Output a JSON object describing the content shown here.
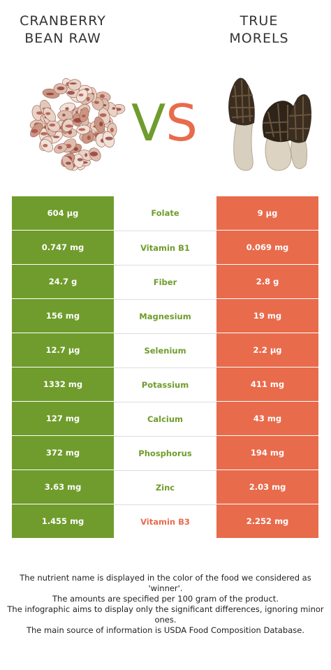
{
  "left_food": {
    "title_line1": "CRANBERRY",
    "title_line2": "BEAN RAW"
  },
  "right_food": {
    "title_line1": "TRUE",
    "title_line2": "MORELS"
  },
  "vs": {
    "v": "V",
    "s": "S"
  },
  "colors": {
    "winner_left": "#6f9c2c",
    "winner_right": "#e86b4c"
  },
  "rows": [
    {
      "left": "604 µg",
      "nutrient": "Folate",
      "right": "9 µg",
      "winner": "left"
    },
    {
      "left": "0.747 mg",
      "nutrient": "Vitamin B1",
      "right": "0.069 mg",
      "winner": "left"
    },
    {
      "left": "24.7 g",
      "nutrient": "Fiber",
      "right": "2.8 g",
      "winner": "left"
    },
    {
      "left": "156 mg",
      "nutrient": "Magnesium",
      "right": "19 mg",
      "winner": "left"
    },
    {
      "left": "12.7 µg",
      "nutrient": "Selenium",
      "right": "2.2 µg",
      "winner": "left"
    },
    {
      "left": "1332 mg",
      "nutrient": "Potassium",
      "right": "411 mg",
      "winner": "left"
    },
    {
      "left": "127 mg",
      "nutrient": "Calcium",
      "right": "43 mg",
      "winner": "left"
    },
    {
      "left": "372 mg",
      "nutrient": "Phosphorus",
      "right": "194 mg",
      "winner": "left"
    },
    {
      "left": "3.63 mg",
      "nutrient": "Zinc",
      "right": "2.03 mg",
      "winner": "left"
    },
    {
      "left": "1.455 mg",
      "nutrient": "Vitamin B3",
      "right": "2.252 mg",
      "winner": "right"
    }
  ],
  "footer": {
    "line1": "The nutrient name is displayed in the color of the food we considered as 'winner'.",
    "line2": "The amounts are specified per 100 gram of the product.",
    "line3": "The infographic aims to display only the significant differences, ignoring minor ones.",
    "line4": "The main source of information is USDA Food Composition Database."
  }
}
